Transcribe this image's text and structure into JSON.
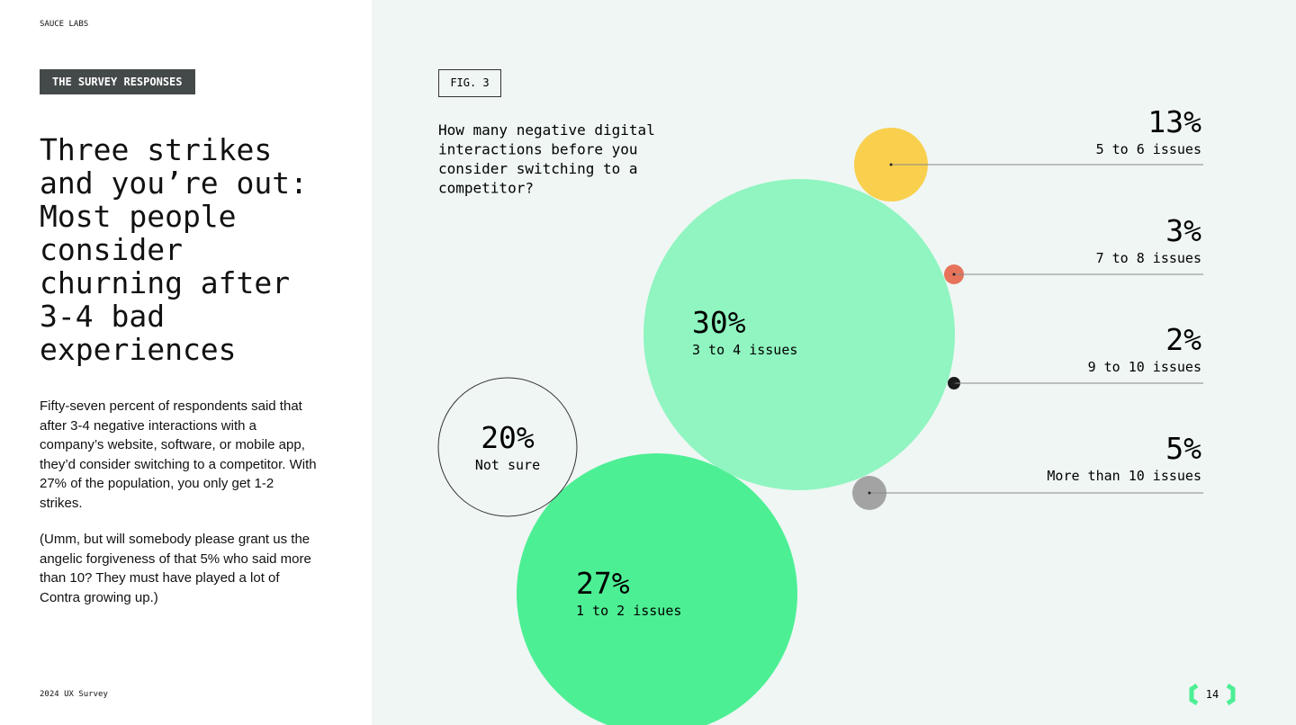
{
  "header": {
    "brand": "SAUCE LABS",
    "tag": "THE SURVEY RESPONSES"
  },
  "headline": "Three strikes and you’re out: Most people consider churning after 3-4 bad experiences",
  "body": [
    "Fifty-seven percent of respondents said that after 3-4 negative interactions with a company’s website, software, or mobile app, they’d consider switching to a competitor. With 27% of the population, you only get 1-2 strikes.",
    "(Umm, but will somebody please grant us the angelic forgiveness of that 5% who said more than 10? They must have played a lot of Contra growing up.)"
  ],
  "footer": {
    "survey": "2024 UX Survey",
    "page": "14"
  },
  "chart_data": {
    "type": "bubble",
    "figure": "FIG. 3",
    "title": "How many negative digital interactions before you consider switching to a competitor?",
    "categories": [
      "1 to 2 issues",
      "3 to 4 issues",
      "5 to 6 issues",
      "7 to 8 issues",
      "9 to 10 issues",
      "More than 10 issues",
      "Not sure"
    ],
    "values": [
      27,
      30,
      13,
      3,
      2,
      5,
      20
    ],
    "value_labels": [
      "27%",
      "30%",
      "13%",
      "3%",
      "2%",
      "5%",
      "20%"
    ],
    "colors": [
      "#4def94",
      "#90f5c0",
      "#f9cf4e",
      "#e6735a",
      "#1b1b1b",
      "#a3a3a3",
      "none"
    ]
  }
}
